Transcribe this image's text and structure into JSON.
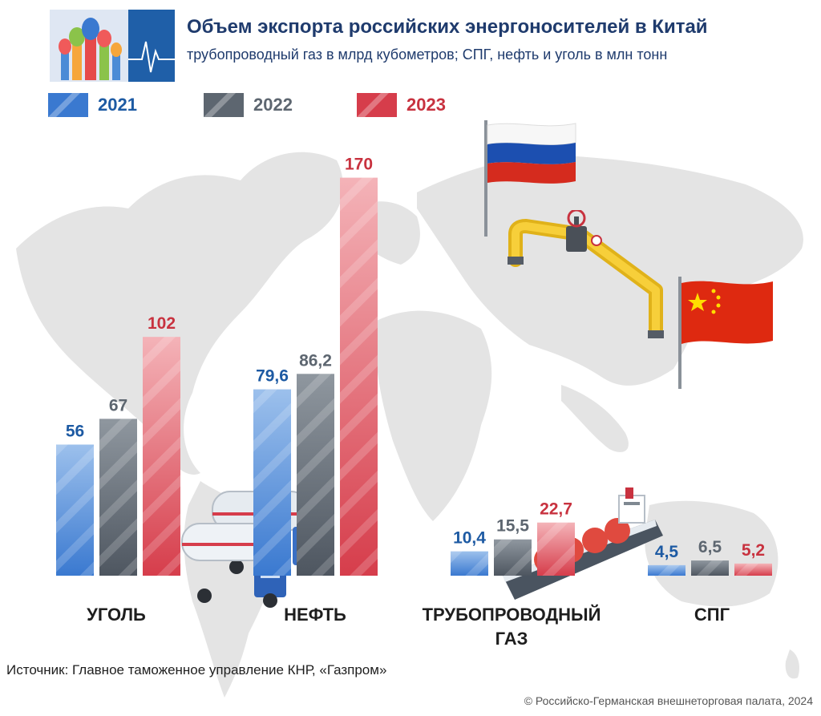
{
  "header": {
    "title": "Объем экспорта российских энергоносителей в Китай",
    "subtitle": "трубопроводный газ в млрд кубометров; СПГ, нефть и уголь в млн тонн"
  },
  "colors": {
    "2021": "#3a79d0",
    "2022": "#5d6670",
    "2023": "#d63d4b",
    "label_2021": "#1d5aa3",
    "label_2022": "#5d6670",
    "label_2023": "#c8323f",
    "title": "#1f3b6d",
    "map": "#e4e4e4"
  },
  "chart_data": {
    "type": "bar",
    "categories": [
      "УГОЛЬ",
      "НЕФТЬ",
      "ТРУБОПРОВОДНЫЙ ГАЗ",
      "СПГ"
    ],
    "series": [
      {
        "name": "2021",
        "values": [
          56,
          79.6,
          10.4,
          4.5
        ],
        "labels": [
          "56",
          "79,6",
          "10,4",
          "4,5"
        ]
      },
      {
        "name": "2022",
        "values": [
          67,
          86.2,
          15.5,
          6.5
        ],
        "labels": [
          "67",
          "86,2",
          "15,5",
          "6,5"
        ]
      },
      {
        "name": "2023",
        "values": [
          102,
          170,
          22.7,
          5.2
        ],
        "labels": [
          "102",
          "170",
          "22,7",
          "5,2"
        ]
      }
    ],
    "title": "Объем экспорта российских энергоносителей в Китай",
    "subtitle": "трубопроводный газ в млрд кубометров; СПГ, нефть и уголь в млн тонн",
    "legend_position": "top-left",
    "grid": false
  },
  "categories_display": {
    "coal": "УГОЛЬ",
    "oil": "НЕФТЬ",
    "gas_line1": "ТРУБОПРОВОДНЫЙ",
    "gas_line2": "ГАЗ",
    "lng": "СПГ"
  },
  "footer": {
    "source": "Источник: Главное таможенное управление КНР, «Газпром»",
    "copyright": "© Российско-Германская внешнеторговая палата, 2024"
  },
  "icons": [
    "moscow-cathedral-logo",
    "heartbeat-line",
    "world-map",
    "russia-flag",
    "china-flag",
    "pipeline-valve",
    "tanker-trucks",
    "lng-ship"
  ]
}
